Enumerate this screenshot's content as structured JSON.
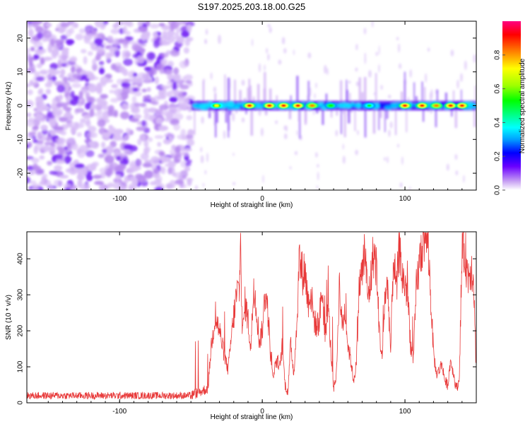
{
  "page_title": "S197.2025.203.18.00.G25",
  "chart_data": [
    {
      "type": "heatmap",
      "title": "S197.2025.203.18.00.G25",
      "xlabel": "Height of straight line (km)",
      "ylabel": "Frequency (Hz)",
      "xlim": [
        -165,
        150
      ],
      "ylim": [
        -25,
        25
      ],
      "xticks": [
        -100,
        0,
        100
      ],
      "yticks": [
        -20,
        -10,
        0,
        10,
        20
      ],
      "colorbar": {
        "label": "Normalized spectral amplitude",
        "range": [
          0,
          1
        ],
        "ticks": [
          0.0,
          0.2,
          0.4,
          0.6,
          0.8
        ],
        "colormap": [
          "#ffffff",
          "#c9a4f3",
          "#6a00ff",
          "#0000ff",
          "#00a0ff",
          "#00ffff",
          "#00ff80",
          "#00ff00",
          "#a0ff00",
          "#ffff00",
          "#ff8000",
          "#ff0000",
          "#ff0080"
        ]
      },
      "noise_region_x": [
        -165,
        -50
      ],
      "ridge": {
        "x_range": [
          -50,
          150
        ],
        "frequency_hz": 0,
        "peaks": [
          {
            "x": -32,
            "amplitude": 0.75
          },
          {
            "x": -9,
            "amplitude": 0.95
          },
          {
            "x": 5,
            "amplitude": 0.9
          },
          {
            "x": 15,
            "amplitude": 0.9
          },
          {
            "x": 25,
            "amplitude": 0.95
          },
          {
            "x": 35,
            "amplitude": 0.85
          },
          {
            "x": 48,
            "amplitude": 0.6
          },
          {
            "x": 75,
            "amplitude": 0.55
          },
          {
            "x": 100,
            "amplitude": 0.95
          },
          {
            "x": 112,
            "amplitude": 0.9
          },
          {
            "x": 122,
            "amplitude": 0.85
          },
          {
            "x": 132,
            "amplitude": 0.9
          },
          {
            "x": 140,
            "amplitude": 0.95
          }
        ]
      }
    },
    {
      "type": "line",
      "xlabel": "Height of straight line (km)",
      "ylabel": "SNR (10 * v/v)",
      "xlim": [
        -165,
        150
      ],
      "ylim": [
        0,
        475
      ],
      "xticks": [
        -100,
        0,
        100
      ],
      "yticks": [
        0,
        100,
        200,
        300,
        400
      ],
      "line_color": "#e83a3a",
      "x": [
        -165,
        -50,
        -38,
        -36,
        -33,
        -30,
        -27,
        -24,
        -22,
        -20,
        -18,
        -16,
        -15,
        -14,
        -12,
        -10,
        -8,
        -6,
        -4,
        -2,
        0,
        2,
        4,
        6,
        8,
        10,
        12,
        14,
        16,
        18,
        20,
        22,
        24,
        26,
        28,
        30,
        32,
        34,
        36,
        38,
        40,
        42,
        44,
        46,
        48,
        50,
        52,
        54,
        56,
        58,
        60,
        62,
        64,
        66,
        68,
        70,
        72,
        74,
        76,
        78,
        80,
        82,
        84,
        86,
        88,
        90,
        92,
        94,
        96,
        98,
        100,
        102,
        104,
        106,
        108,
        110,
        112,
        114,
        116,
        118,
        120,
        122,
        124,
        126,
        128,
        130,
        132,
        134,
        136,
        138,
        140,
        142,
        144,
        146,
        148,
        150
      ],
      "values": [
        20,
        20,
        40,
        150,
        240,
        200,
        140,
        90,
        170,
        240,
        300,
        320,
        455,
        180,
        280,
        230,
        150,
        330,
        260,
        170,
        200,
        310,
        250,
        120,
        70,
        120,
        90,
        160,
        50,
        30,
        170,
        80,
        200,
        400,
        360,
        370,
        280,
        310,
        240,
        210,
        230,
        320,
        180,
        280,
        150,
        40,
        80,
        330,
        210,
        260,
        160,
        120,
        60,
        110,
        330,
        360,
        420,
        290,
        340,
        420,
        380,
        200,
        120,
        300,
        320,
        140,
        420,
        300,
        440,
        350,
        330,
        300,
        160,
        120,
        320,
        380,
        440,
        470,
        460,
        300,
        140,
        80,
        90,
        110,
        60,
        50,
        120,
        80,
        40,
        60,
        410,
        430,
        350,
        380,
        360,
        80
      ]
    }
  ]
}
